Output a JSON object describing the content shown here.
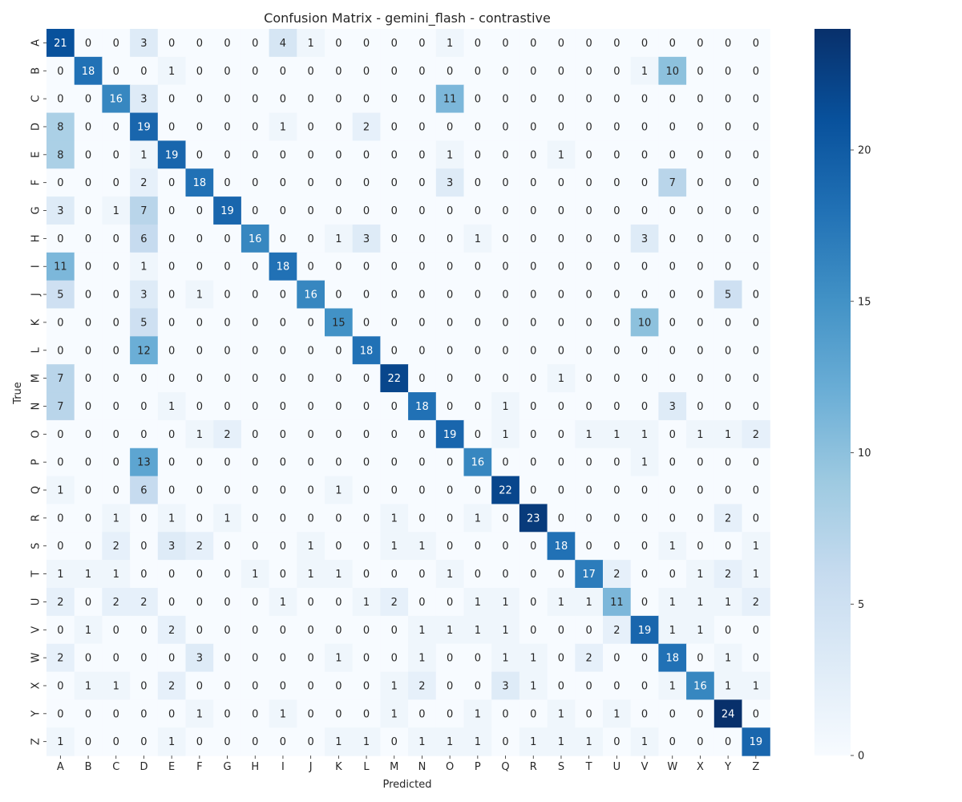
{
  "chart_data": {
    "type": "heatmap",
    "title": "Confusion Matrix - gemini_flash - contrastive",
    "xlabel": "Predicted",
    "ylabel": "True",
    "x_categories": [
      "A",
      "B",
      "C",
      "D",
      "E",
      "F",
      "G",
      "H",
      "I",
      "J",
      "K",
      "L",
      "M",
      "N",
      "O",
      "P",
      "Q",
      "R",
      "S",
      "T",
      "U",
      "V",
      "W",
      "X",
      "Y",
      "Z"
    ],
    "y_categories": [
      "A",
      "B",
      "C",
      "D",
      "E",
      "F",
      "G",
      "H",
      "I",
      "J",
      "K",
      "L",
      "M",
      "N",
      "O",
      "P",
      "Q",
      "R",
      "S",
      "T",
      "U",
      "V",
      "W",
      "X",
      "Y",
      "Z"
    ],
    "values": [
      [
        21,
        0,
        0,
        3,
        0,
        0,
        0,
        0,
        4,
        1,
        0,
        0,
        0,
        0,
        1,
        0,
        0,
        0,
        0,
        0,
        0,
        0,
        0,
        0,
        0,
        0
      ],
      [
        0,
        18,
        0,
        0,
        1,
        0,
        0,
        0,
        0,
        0,
        0,
        0,
        0,
        0,
        0,
        0,
        0,
        0,
        0,
        0,
        0,
        1,
        10,
        0,
        0,
        0
      ],
      [
        0,
        0,
        16,
        3,
        0,
        0,
        0,
        0,
        0,
        0,
        0,
        0,
        0,
        0,
        11,
        0,
        0,
        0,
        0,
        0,
        0,
        0,
        0,
        0,
        0,
        0
      ],
      [
        8,
        0,
        0,
        19,
        0,
        0,
        0,
        0,
        1,
        0,
        0,
        2,
        0,
        0,
        0,
        0,
        0,
        0,
        0,
        0,
        0,
        0,
        0,
        0,
        0,
        0
      ],
      [
        8,
        0,
        0,
        1,
        19,
        0,
        0,
        0,
        0,
        0,
        0,
        0,
        0,
        0,
        1,
        0,
        0,
        0,
        1,
        0,
        0,
        0,
        0,
        0,
        0,
        0
      ],
      [
        0,
        0,
        0,
        2,
        0,
        18,
        0,
        0,
        0,
        0,
        0,
        0,
        0,
        0,
        3,
        0,
        0,
        0,
        0,
        0,
        0,
        0,
        7,
        0,
        0,
        0
      ],
      [
        3,
        0,
        1,
        7,
        0,
        0,
        19,
        0,
        0,
        0,
        0,
        0,
        0,
        0,
        0,
        0,
        0,
        0,
        0,
        0,
        0,
        0,
        0,
        0,
        0,
        0
      ],
      [
        0,
        0,
        0,
        6,
        0,
        0,
        0,
        16,
        0,
        0,
        1,
        3,
        0,
        0,
        0,
        1,
        0,
        0,
        0,
        0,
        0,
        3,
        0,
        0,
        0,
        0
      ],
      [
        11,
        0,
        0,
        1,
        0,
        0,
        0,
        0,
        18,
        0,
        0,
        0,
        0,
        0,
        0,
        0,
        0,
        0,
        0,
        0,
        0,
        0,
        0,
        0,
        0,
        0
      ],
      [
        5,
        0,
        0,
        3,
        0,
        1,
        0,
        0,
        0,
        16,
        0,
        0,
        0,
        0,
        0,
        0,
        0,
        0,
        0,
        0,
        0,
        0,
        0,
        0,
        5,
        0
      ],
      [
        0,
        0,
        0,
        5,
        0,
        0,
        0,
        0,
        0,
        0,
        15,
        0,
        0,
        0,
        0,
        0,
        0,
        0,
        0,
        0,
        0,
        10,
        0,
        0,
        0,
        0
      ],
      [
        0,
        0,
        0,
        12,
        0,
        0,
        0,
        0,
        0,
        0,
        0,
        18,
        0,
        0,
        0,
        0,
        0,
        0,
        0,
        0,
        0,
        0,
        0,
        0,
        0,
        0
      ],
      [
        7,
        0,
        0,
        0,
        0,
        0,
        0,
        0,
        0,
        0,
        0,
        0,
        22,
        0,
        0,
        0,
        0,
        0,
        1,
        0,
        0,
        0,
        0,
        0,
        0,
        0
      ],
      [
        7,
        0,
        0,
        0,
        1,
        0,
        0,
        0,
        0,
        0,
        0,
        0,
        0,
        18,
        0,
        0,
        1,
        0,
        0,
        0,
        0,
        0,
        3,
        0,
        0,
        0
      ],
      [
        0,
        0,
        0,
        0,
        0,
        1,
        2,
        0,
        0,
        0,
        0,
        0,
        0,
        0,
        19,
        0,
        1,
        0,
        0,
        1,
        1,
        1,
        0,
        1,
        1,
        2
      ],
      [
        0,
        0,
        0,
        13,
        0,
        0,
        0,
        0,
        0,
        0,
        0,
        0,
        0,
        0,
        0,
        16,
        0,
        0,
        0,
        0,
        0,
        1,
        0,
        0,
        0,
        0
      ],
      [
        1,
        0,
        0,
        6,
        0,
        0,
        0,
        0,
        0,
        0,
        1,
        0,
        0,
        0,
        0,
        0,
        22,
        0,
        0,
        0,
        0,
        0,
        0,
        0,
        0,
        0
      ],
      [
        0,
        0,
        1,
        0,
        1,
        0,
        1,
        0,
        0,
        0,
        0,
        0,
        1,
        0,
        0,
        1,
        0,
        23,
        0,
        0,
        0,
        0,
        0,
        0,
        2,
        0
      ],
      [
        0,
        0,
        2,
        0,
        3,
        2,
        0,
        0,
        0,
        1,
        0,
        0,
        1,
        1,
        0,
        0,
        0,
        0,
        18,
        0,
        0,
        0,
        1,
        0,
        0,
        1
      ],
      [
        1,
        1,
        1,
        0,
        0,
        0,
        0,
        1,
        0,
        1,
        1,
        0,
        0,
        0,
        1,
        0,
        0,
        0,
        0,
        17,
        2,
        0,
        0,
        1,
        2,
        1
      ],
      [
        2,
        0,
        2,
        2,
        0,
        0,
        0,
        0,
        1,
        0,
        0,
        1,
        2,
        0,
        0,
        1,
        1,
        0,
        1,
        1,
        11,
        0,
        1,
        1,
        1,
        2
      ],
      [
        0,
        1,
        0,
        0,
        2,
        0,
        0,
        0,
        0,
        0,
        0,
        0,
        0,
        1,
        1,
        1,
        1,
        0,
        0,
        0,
        2,
        19,
        1,
        1,
        0,
        0
      ],
      [
        2,
        0,
        0,
        0,
        0,
        3,
        0,
        0,
        0,
        0,
        1,
        0,
        0,
        1,
        0,
        0,
        1,
        1,
        0,
        2,
        0,
        0,
        18,
        0,
        1,
        0
      ],
      [
        0,
        1,
        1,
        0,
        2,
        0,
        0,
        0,
        0,
        0,
        0,
        0,
        1,
        2,
        0,
        0,
        3,
        1,
        0,
        0,
        0,
        0,
        1,
        16,
        1,
        1
      ],
      [
        0,
        0,
        0,
        0,
        0,
        1,
        0,
        0,
        1,
        0,
        0,
        0,
        1,
        0,
        0,
        1,
        0,
        0,
        1,
        0,
        1,
        0,
        0,
        0,
        24,
        0
      ],
      [
        1,
        0,
        0,
        0,
        1,
        0,
        0,
        0,
        0,
        0,
        1,
        1,
        0,
        1,
        1,
        1,
        0,
        1,
        1,
        1,
        0,
        1,
        0,
        0,
        0,
        19
      ]
    ],
    "vmin": 0,
    "vmax": 24,
    "colormap": "Blues",
    "colorbar_ticks": [
      0,
      5,
      10,
      15,
      20
    ],
    "grid": false
  }
}
